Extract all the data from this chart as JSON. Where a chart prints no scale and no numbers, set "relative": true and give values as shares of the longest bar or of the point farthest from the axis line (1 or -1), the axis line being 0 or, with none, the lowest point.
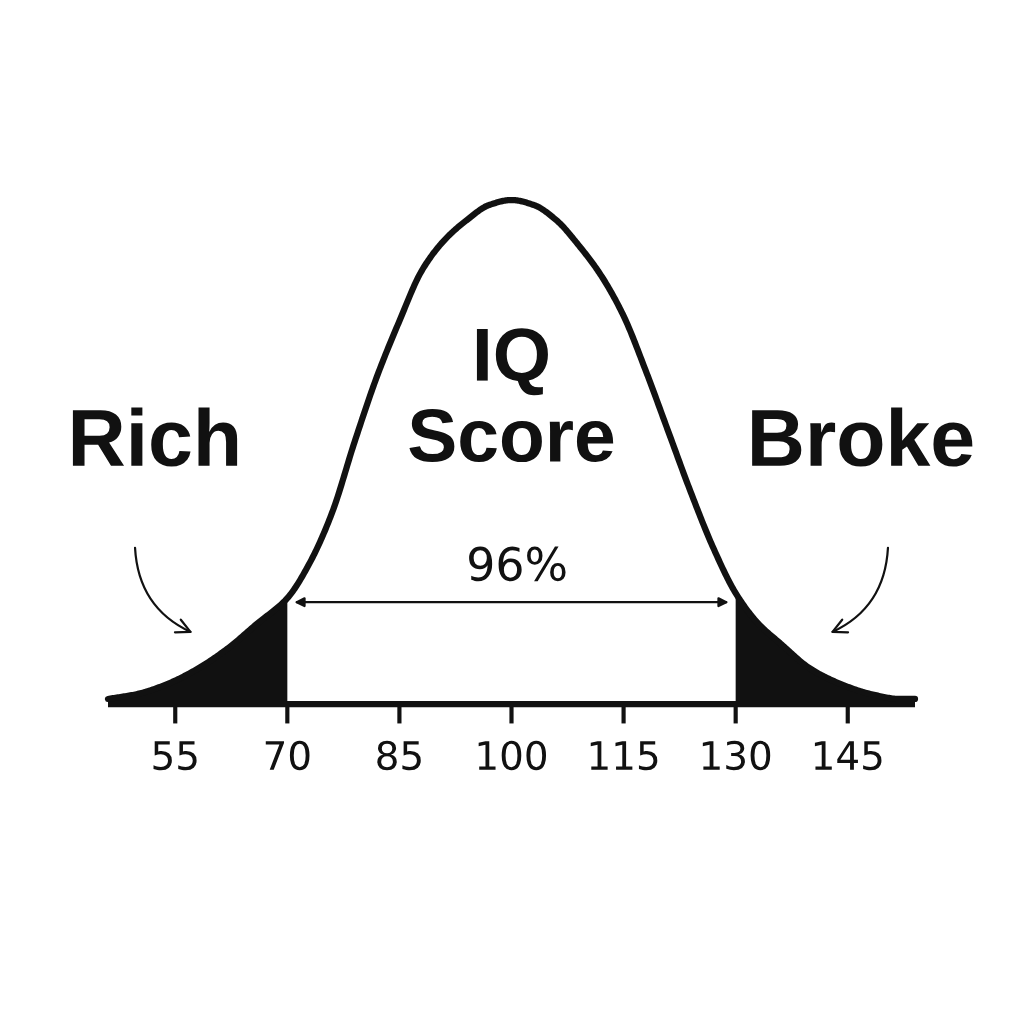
{
  "chart_data": {
    "type": "line",
    "relative": true,
    "xlim": [
      46,
      154
    ],
    "xticks": [
      55,
      70,
      85,
      100,
      115,
      130,
      145
    ],
    "series": [
      {
        "color": "#111111",
        "x": [
          46,
          50,
          54,
          58,
          62,
          66,
          70,
          73,
          76,
          79,
          82,
          85,
          88,
          91,
          94,
          97,
          100,
          103,
          106,
          109,
          112,
          115,
          118,
          121,
          124,
          127,
          130,
          133,
          136,
          140,
          144,
          148,
          152,
          154
        ],
        "values": [
          0.01,
          0.02,
          0.04,
          0.07,
          0.11,
          0.16,
          0.21,
          0.28,
          0.38,
          0.52,
          0.65,
          0.76,
          0.86,
          0.92,
          0.96,
          0.99,
          1.0,
          0.99,
          0.96,
          0.91,
          0.85,
          0.77,
          0.66,
          0.54,
          0.42,
          0.31,
          0.22,
          0.16,
          0.12,
          0.07,
          0.04,
          0.02,
          0.01,
          0.01
        ]
      },
      {
        "type": "area",
        "color": "#111111",
        "x": [
          46,
          50,
          54,
          58,
          62,
          66,
          70
        ],
        "values": [
          0.01,
          0.02,
          0.04,
          0.07,
          0.11,
          0.16,
          0.21
        ]
      },
      {
        "type": "area",
        "color": "#111111",
        "x": [
          130,
          133,
          136,
          140,
          144,
          148,
          152,
          154
        ],
        "values": [
          0.22,
          0.16,
          0.12,
          0.07,
          0.04,
          0.02,
          0.01,
          0.01
        ]
      }
    ],
    "annotations": [
      "IQ\nScore",
      "Rich",
      "Broke",
      "96%"
    ]
  }
}
